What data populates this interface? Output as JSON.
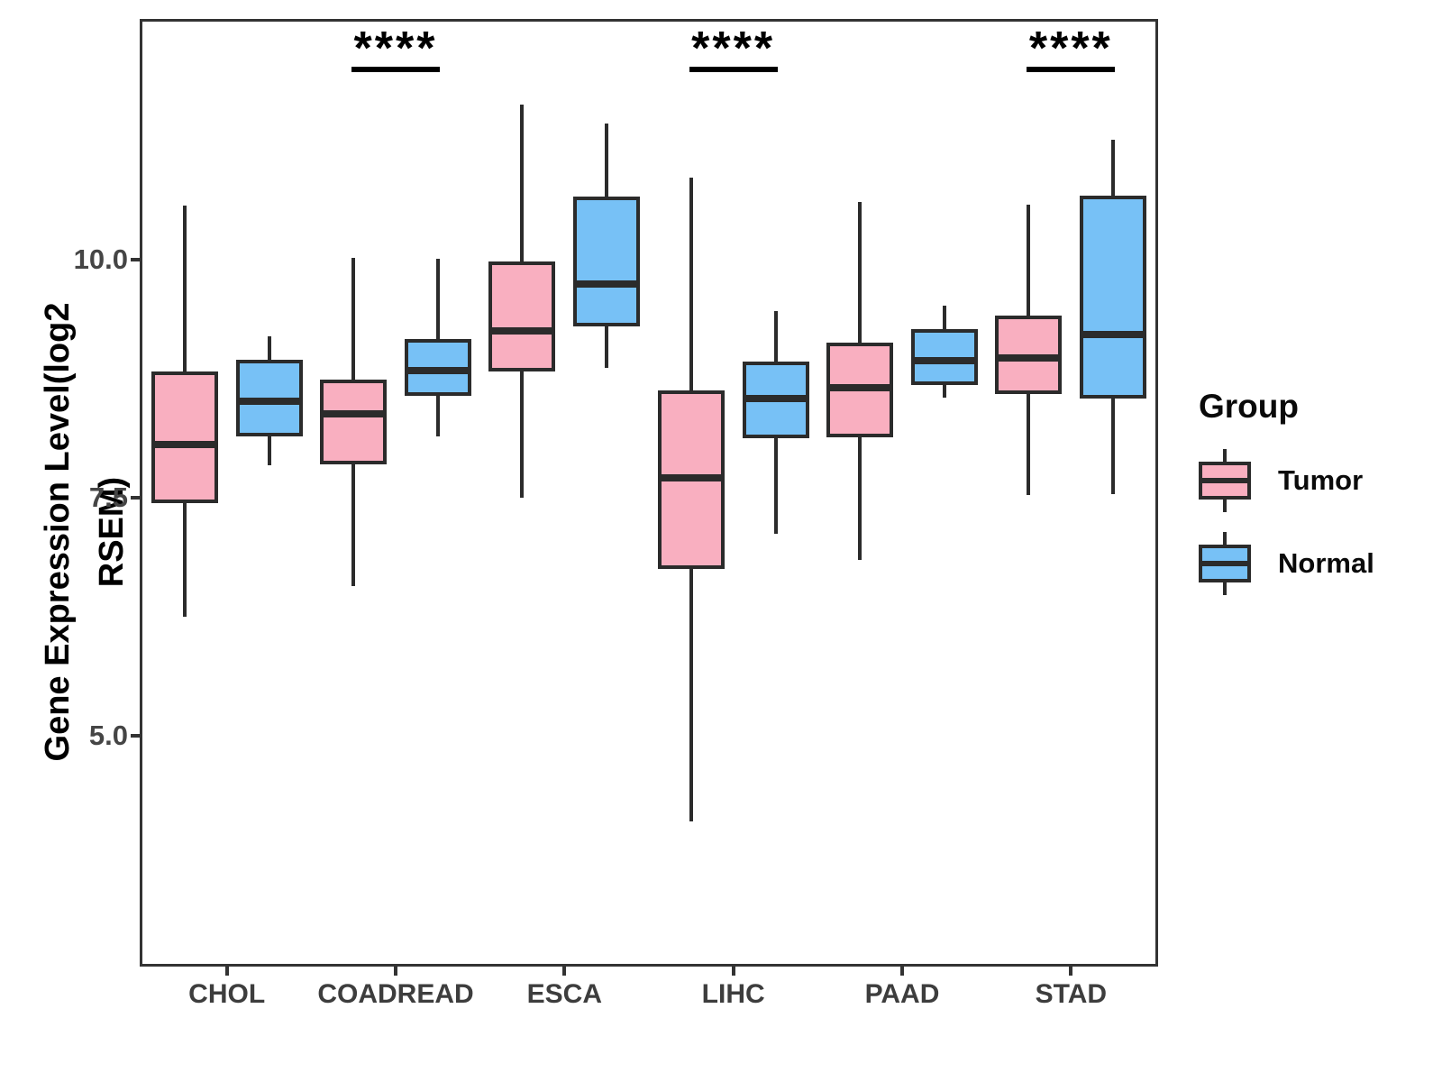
{
  "figure": {
    "y_axis": {
      "title": "Gene Expression Level(log2 RSEM)",
      "tick_labels": [
        "5.0",
        "7.5",
        "10.0"
      ],
      "tick_values": [
        5.0,
        7.5,
        10.0
      ]
    },
    "x_axis": {
      "categories": [
        "CHOL",
        "COADREAD",
        "ESCA",
        "LIHC",
        "PAAD",
        "STAD"
      ]
    },
    "legend": {
      "title": "Group",
      "items": [
        {
          "label": "Tumor",
          "color": "#F9AFC0"
        },
        {
          "label": "Normal",
          "color": "#77C1F6"
        }
      ]
    }
  },
  "chart_data": {
    "type": "boxplot",
    "title": "",
    "xlabel": "",
    "ylabel": "Gene Expression Level(log2 RSEM)",
    "ylim": [
      2.6,
      12.5
    ],
    "yticks": [
      5.0,
      7.5,
      10.0
    ],
    "grid": false,
    "legend_position": "right",
    "categories": [
      "CHOL",
      "COADREAD",
      "ESCA",
      "LIHC",
      "PAAD",
      "STAD"
    ],
    "series": [
      {
        "name": "Tumor",
        "fill": "#F9AFC0",
        "stroke": "#2b2b2b",
        "boxes": [
          {
            "category": "CHOL",
            "whisker_low": 6.25,
            "q1": 7.44,
            "median": 8.06,
            "q3": 8.82,
            "whisker_high": 10.57
          },
          {
            "category": "COADREAD",
            "whisker_low": 6.57,
            "q1": 7.85,
            "median": 8.38,
            "q3": 8.74,
            "whisker_high": 10.02
          },
          {
            "category": "ESCA",
            "whisker_low": 7.5,
            "q1": 8.82,
            "median": 9.25,
            "q3": 9.98,
            "whisker_high": 11.63
          },
          {
            "category": "LIHC",
            "whisker_low": 4.1,
            "q1": 6.75,
            "median": 7.71,
            "q3": 8.63,
            "whisker_high": 10.86
          },
          {
            "category": "PAAD",
            "whisker_low": 6.84,
            "q1": 8.13,
            "median": 8.65,
            "q3": 9.13,
            "whisker_high": 10.61
          },
          {
            "category": "STAD",
            "whisker_low": 7.53,
            "q1": 8.59,
            "median": 8.97,
            "q3": 9.41,
            "whisker_high": 10.58
          }
        ]
      },
      {
        "name": "Normal",
        "fill": "#77C1F6",
        "stroke": "#2b2b2b",
        "boxes": [
          {
            "category": "CHOL",
            "whisker_low": 7.84,
            "q1": 8.14,
            "median": 8.51,
            "q3": 8.95,
            "whisker_high": 9.19
          },
          {
            "category": "COADREAD",
            "whisker_low": 8.14,
            "q1": 8.57,
            "median": 8.83,
            "q3": 9.17,
            "whisker_high": 10.01
          },
          {
            "category": "ESCA",
            "whisker_low": 8.86,
            "q1": 9.3,
            "median": 9.74,
            "q3": 10.66,
            "whisker_high": 11.43
          },
          {
            "category": "LIHC",
            "whisker_low": 7.12,
            "q1": 8.12,
            "median": 8.54,
            "q3": 8.93,
            "whisker_high": 9.46
          },
          {
            "category": "PAAD",
            "whisker_low": 8.55,
            "q1": 8.68,
            "median": 8.94,
            "q3": 9.27,
            "whisker_high": 9.52
          },
          {
            "category": "STAD",
            "whisker_low": 7.54,
            "q1": 8.54,
            "median": 9.21,
            "q3": 10.67,
            "whisker_high": 11.26
          }
        ]
      }
    ],
    "significance": [
      {
        "category": "COADREAD",
        "label": "****"
      },
      {
        "category": "LIHC",
        "label": "****"
      },
      {
        "category": "STAD",
        "label": "****"
      }
    ]
  }
}
